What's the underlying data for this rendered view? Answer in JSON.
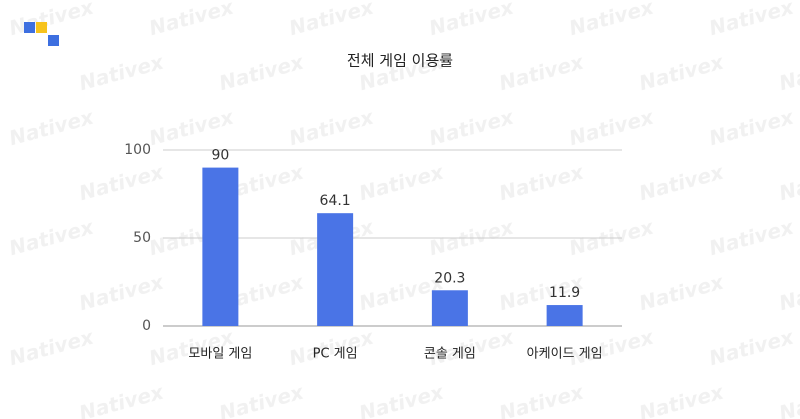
{
  "chart_data": {
    "type": "bar",
    "title": "전체 게임 이용률",
    "categories": [
      "모바일 게임",
      "PC 게임",
      "콘솔 게임",
      "아케이드 게임"
    ],
    "values": [
      90,
      64.1,
      20.3,
      11.9
    ],
    "color": "#4a74e6",
    "ylim": [
      0,
      100
    ],
    "yticks": [
      0,
      50,
      100
    ],
    "grid": true,
    "watermark": "Nativex"
  }
}
